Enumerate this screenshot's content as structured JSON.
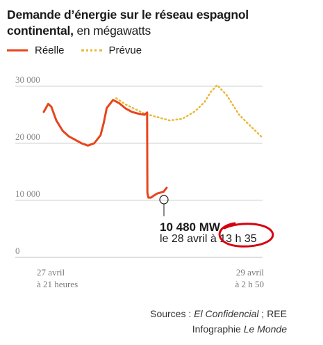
{
  "title": "Demande d’énergie sur le réseau espagnol continental,",
  "title_unit": "en mégawatts",
  "legend": {
    "actual_label": "Réelle",
    "forecast_label": "Prévue"
  },
  "colors": {
    "actual": "#e8441c",
    "forecast": "#e8b838",
    "grid": "#cfcfcf",
    "annotation_circle": "#d7000f"
  },
  "annotation": {
    "value": "10 480 MW",
    "date": "le 28 avril à 13 h 35"
  },
  "x_labels": {
    "start_line1": "27 avril",
    "start_line2": "à 21 heures",
    "end_line1": "29 avril",
    "end_line2": "à 2 h 50"
  },
  "sources": {
    "line1_prefix": "Sources : ",
    "line1_src1": "El Confidencial",
    "line1_sep": " ; REE",
    "line2_prefix": "Infographie ",
    "line2_src": "Le Monde"
  },
  "chart_data": {
    "type": "line",
    "ylim": [
      0,
      30000
    ],
    "y_ticks": [
      "30 000",
      "20 000",
      "10 000",
      "0"
    ],
    "y_tick_values": [
      30000,
      20000,
      10000,
      0
    ],
    "x_start": "27 avril à 21 heures",
    "x_end": "29 avril à 2 h 50",
    "series": [
      {
        "name": "Réelle",
        "x_hours": [
          0,
          0.7,
          1.2,
          2,
          3,
          4,
          5,
          6,
          7,
          8,
          9,
          9.5,
          10,
          11,
          12,
          13,
          14,
          15,
          16,
          16.4,
          16.45,
          16.6,
          17,
          17.5,
          18,
          19,
          19.5
        ],
        "values": [
          25500,
          26900,
          26400,
          24000,
          22200,
          21200,
          20600,
          20000,
          19600,
          20000,
          21400,
          23500,
          26200,
          27600,
          27000,
          26100,
          25500,
          25200,
          25000,
          25400,
          11300,
          10480,
          10480,
          10850,
          11200,
          11500,
          12200
        ]
      },
      {
        "name": "Prévue",
        "x_hours": [
          11.5,
          13,
          16,
          18,
          20,
          22,
          24,
          25.5,
          26.5,
          27.5,
          29,
          31,
          33,
          34.5
        ],
        "values": [
          27900,
          26800,
          25200,
          24600,
          24000,
          24300,
          25600,
          27200,
          29000,
          30200,
          28500,
          25000,
          22800,
          21200
        ]
      }
    ]
  }
}
